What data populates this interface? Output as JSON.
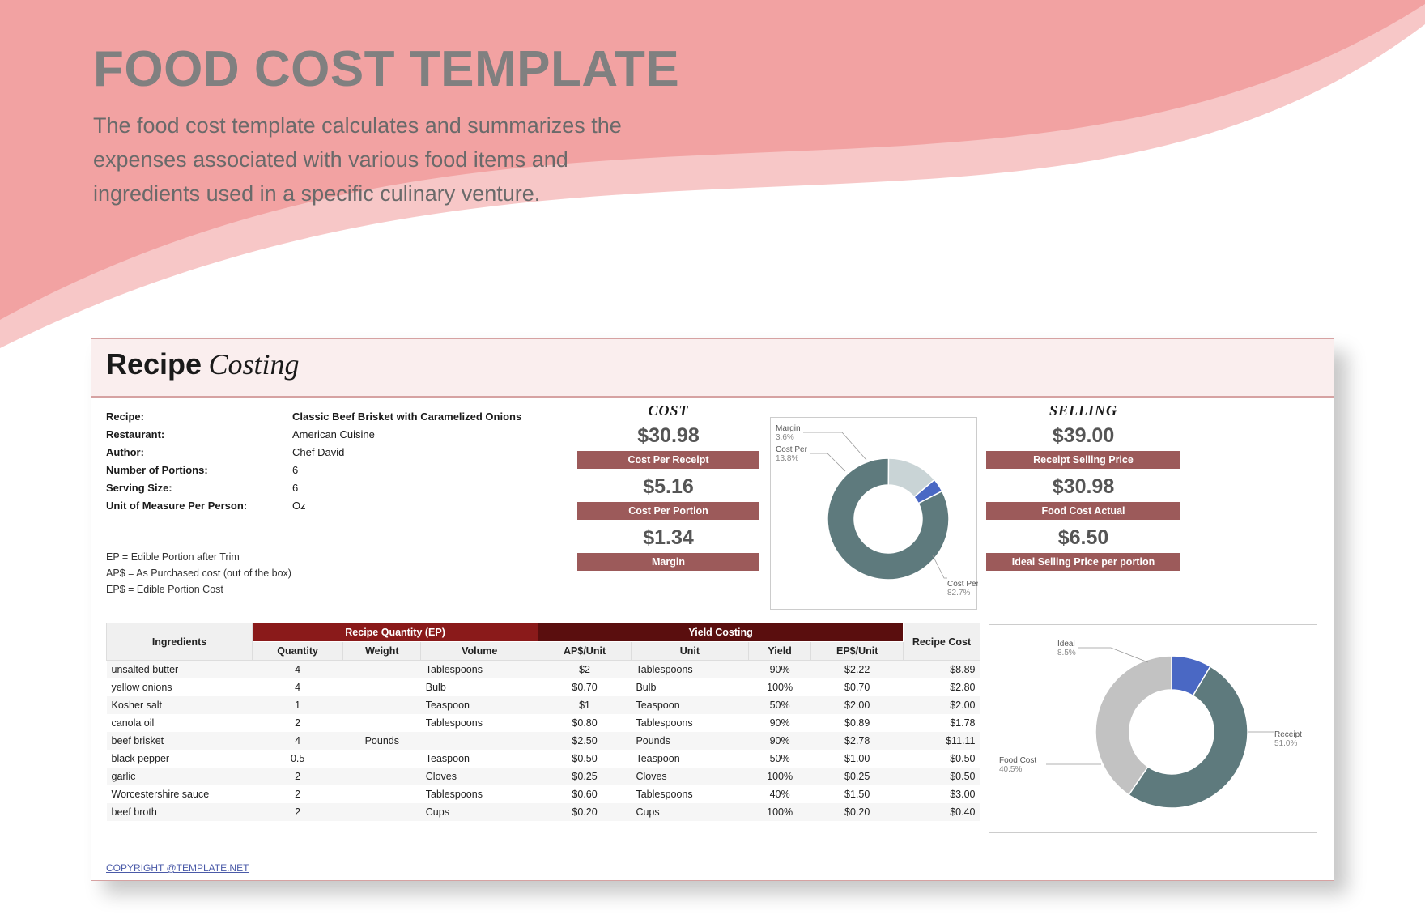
{
  "hero": {
    "title": "FOOD COST TEMPLATE",
    "subtitle": "The food cost template calculates and summarizes the expenses associated with various food items and ingredients used in a specific culinary venture."
  },
  "colors": {
    "wave_dark": "#f2a2a2",
    "wave_light": "#f7c7c7",
    "card_head": "#faeeee",
    "bar_bg": "#9c5a5a",
    "hdr_dark": "#8a1a1a",
    "hdr_darker": "#5a0e0e",
    "donut_main": "#5e7a7d",
    "donut_seg2": "#c9d4d6",
    "donut_seg3": "#4a68c4",
    "donut2_grey": "#c2c2c2"
  },
  "card": {
    "title1": "Recipe",
    "title2": "Costing",
    "info": [
      {
        "label": "Recipe:",
        "value": "Classic Beef Brisket with Caramelized Onions"
      },
      {
        "label": "Restaurant:",
        "value": "American Cuisine"
      },
      {
        "label": "Author:",
        "value": "Chef David"
      },
      {
        "label": "Number of Portions:",
        "value": "6"
      },
      {
        "label": "Serving Size:",
        "value": "6"
      },
      {
        "label": "Unit of Measure Per Person:",
        "value": "Oz"
      }
    ],
    "defs": [
      "EP = Edible Portion after Trim",
      "AP$ = As Purchased cost (out of the box)",
      "EP$ = Edible Portion Cost"
    ],
    "copyright": "COPYRIGHT @TEMPLATE.NET"
  },
  "cost": {
    "heading": "COST",
    "metrics": [
      {
        "value": "$30.98",
        "label": "Cost Per Receipt"
      },
      {
        "value": "$5.16",
        "label": "Cost Per Portion"
      },
      {
        "value": "$1.34",
        "label": "Margin"
      }
    ]
  },
  "selling": {
    "heading": "SELLING",
    "metrics": [
      {
        "value": "$39.00",
        "label": "Receipt Selling Price"
      },
      {
        "value": "$30.98",
        "label": "Food Cost Actual"
      },
      {
        "value": "$6.50",
        "label": "Ideal Selling Price per portion"
      }
    ]
  },
  "donut1": {
    "segments": [
      {
        "label": "Cost Per",
        "pct": 82.7,
        "color": "#5e7a7d"
      },
      {
        "label": "Cost Per",
        "pct": 13.8,
        "color": "#c9d4d6"
      },
      {
        "label": "Margin",
        "pct": 3.6,
        "color": "#4a68c4"
      }
    ]
  },
  "donut2": {
    "segments": [
      {
        "label": "Receipt",
        "pct": 51.0,
        "color": "#5e7a7d"
      },
      {
        "label": "Food Cost",
        "pct": 40.5,
        "color": "#c2c2c2"
      },
      {
        "label": "Ideal",
        "pct": 8.5,
        "color": "#4a68c4"
      }
    ]
  },
  "table": {
    "group_headers": {
      "ingredients": "Ingredients",
      "recipe_qty": "Recipe Quantity (EP)",
      "yield": "Yield Costing",
      "recipe_cost": "Recipe Cost"
    },
    "sub_headers": [
      "Quantity",
      "Weight",
      "Volume",
      "AP$/Unit",
      "Unit",
      "Yield",
      "EP$/Unit"
    ],
    "rows": [
      {
        "ing": "unsalted butter",
        "qty": "4",
        "weight": "",
        "vol": "Tablespoons",
        "ap": "$2",
        "unit": "Tablespoons",
        "yield": "90%",
        "ep": "$2.22",
        "cost": "$8.89"
      },
      {
        "ing": "yellow onions",
        "qty": "4",
        "weight": "",
        "vol": "Bulb",
        "ap": "$0.70",
        "unit": "Bulb",
        "yield": "100%",
        "ep": "$0.70",
        "cost": "$2.80"
      },
      {
        "ing": "Kosher salt",
        "qty": "1",
        "weight": "",
        "vol": "Teaspoon",
        "ap": "$1",
        "unit": "Teaspoon",
        "yield": "50%",
        "ep": "$2.00",
        "cost": "$2.00"
      },
      {
        "ing": "canola oil",
        "qty": "2",
        "weight": "",
        "vol": "Tablespoons",
        "ap": "$0.80",
        "unit": "Tablespoons",
        "yield": "90%",
        "ep": "$0.89",
        "cost": "$1.78"
      },
      {
        "ing": "beef brisket",
        "qty": "4",
        "weight": "Pounds",
        "vol": "",
        "ap": "$2.50",
        "unit": "Pounds",
        "yield": "90%",
        "ep": "$2.78",
        "cost": "$11.11"
      },
      {
        "ing": "black pepper",
        "qty": "0.5",
        "weight": "",
        "vol": "Teaspoon",
        "ap": "$0.50",
        "unit": "Teaspoon",
        "yield": "50%",
        "ep": "$1.00",
        "cost": "$0.50"
      },
      {
        "ing": "garlic",
        "qty": "2",
        "weight": "",
        "vol": "Cloves",
        "ap": "$0.25",
        "unit": "Cloves",
        "yield": "100%",
        "ep": "$0.25",
        "cost": "$0.50"
      },
      {
        "ing": "Worcestershire sauce",
        "qty": "2",
        "weight": "",
        "vol": "Tablespoons",
        "ap": "$0.60",
        "unit": "Tablespoons",
        "yield": "40%",
        "ep": "$1.50",
        "cost": "$3.00"
      },
      {
        "ing": "beef broth",
        "qty": "2",
        "weight": "",
        "vol": "Cups",
        "ap": "$0.20",
        "unit": "Cups",
        "yield": "100%",
        "ep": "$0.20",
        "cost": "$0.40"
      }
    ]
  }
}
